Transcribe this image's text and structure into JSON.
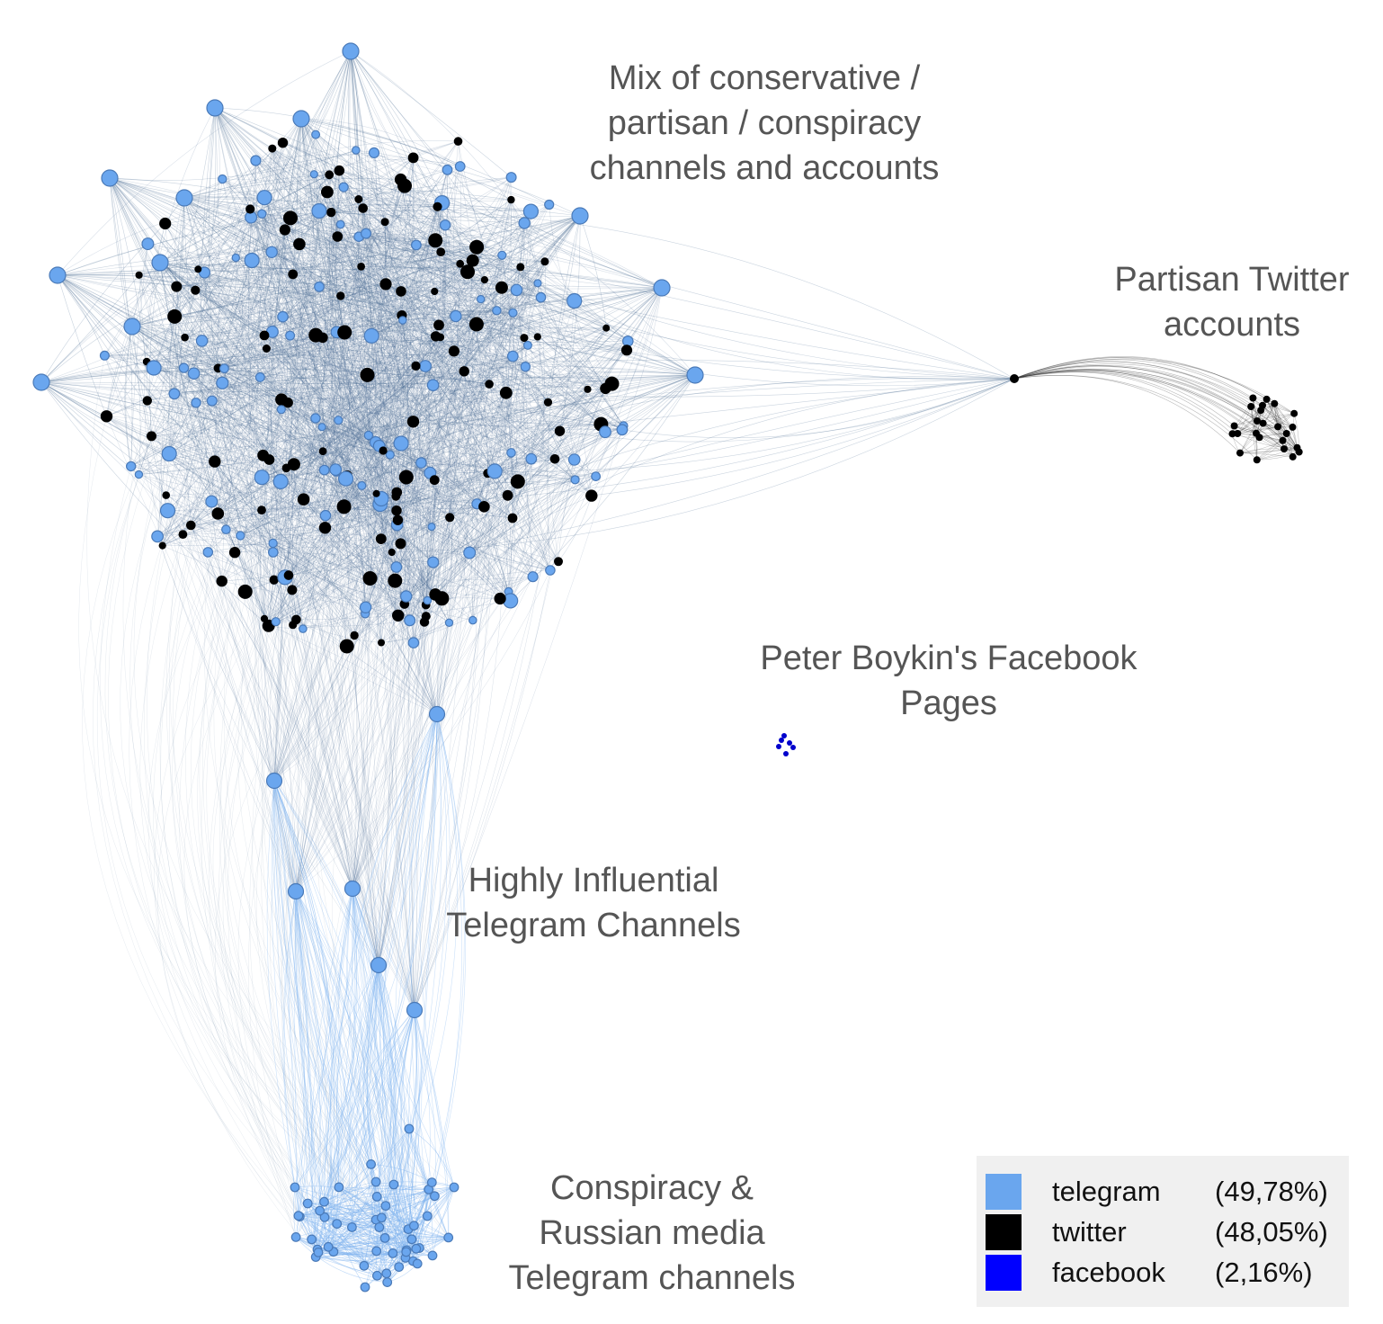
{
  "labels": {
    "mix": [
      "Mix of conservative /",
      "partisan / conspiracy",
      "channels and accounts"
    ],
    "partisan": [
      "Partisan Twitter",
      "accounts"
    ],
    "boykin": [
      "Peter Boykin's Facebook",
      "Pages"
    ],
    "influential": [
      "Highly Influential",
      "Telegram Channels"
    ],
    "conspiracy": [
      "Conspiracy &",
      "Russian media",
      "Telegram channels"
    ]
  },
  "legend": [
    {
      "name": "telegram",
      "pct": "(49,78%)",
      "color": "#6aa6ee"
    },
    {
      "name": "twitter",
      "pct": "(48,05%)",
      "color": "#000000"
    },
    {
      "name": "facebook",
      "pct": "(2,16%)",
      "color": "#0000ff"
    }
  ],
  "colors": {
    "telegram": "#6aa6ee",
    "telegram_edge": "#4a7ab8",
    "twitter": "#000000",
    "facebook": "#0000cc",
    "edge_main": "#4f6f94",
    "edge_light": "#7fb3f0"
  }
}
